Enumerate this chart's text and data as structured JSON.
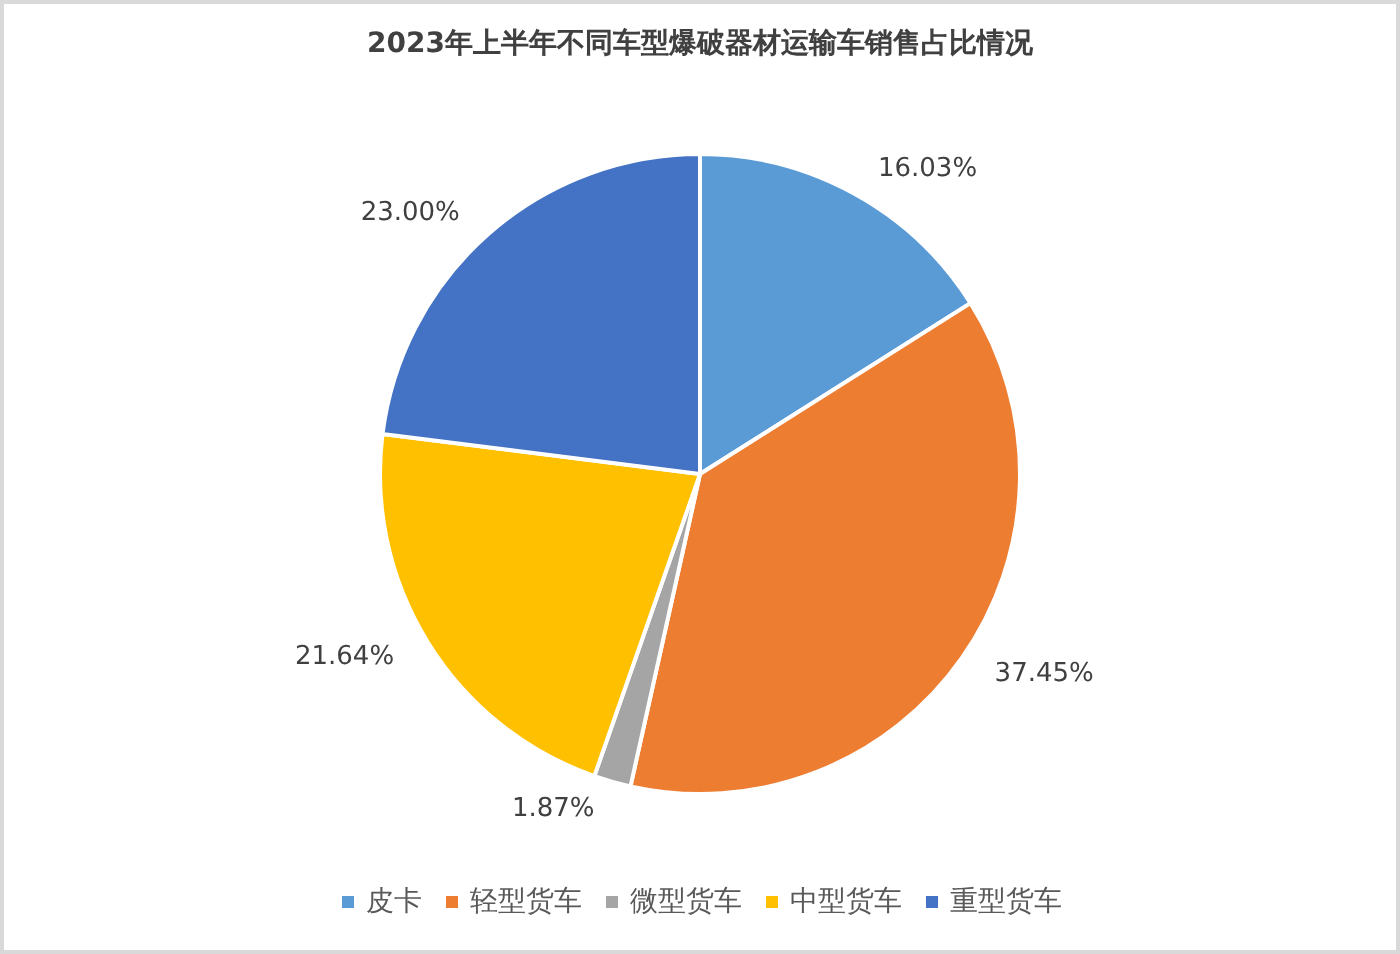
{
  "chart_data": {
    "type": "pie",
    "title": "2023年上半年不同车型爆破器材运输车销售占比情况",
    "categories": [
      "皮卡",
      "轻型货车",
      "微型货车",
      "中型货车",
      "重型货车"
    ],
    "values": [
      16.03,
      37.45,
      1.87,
      21.64,
      23.0
    ],
    "value_labels": [
      "16.03%",
      "37.45%",
      "1.87%",
      "21.64%",
      "23.00%"
    ],
    "colors": [
      "#5b9bd5",
      "#ed7d31",
      "#a5a5a5",
      "#ffc000",
      "#4472c4"
    ],
    "legend": "bottom"
  }
}
